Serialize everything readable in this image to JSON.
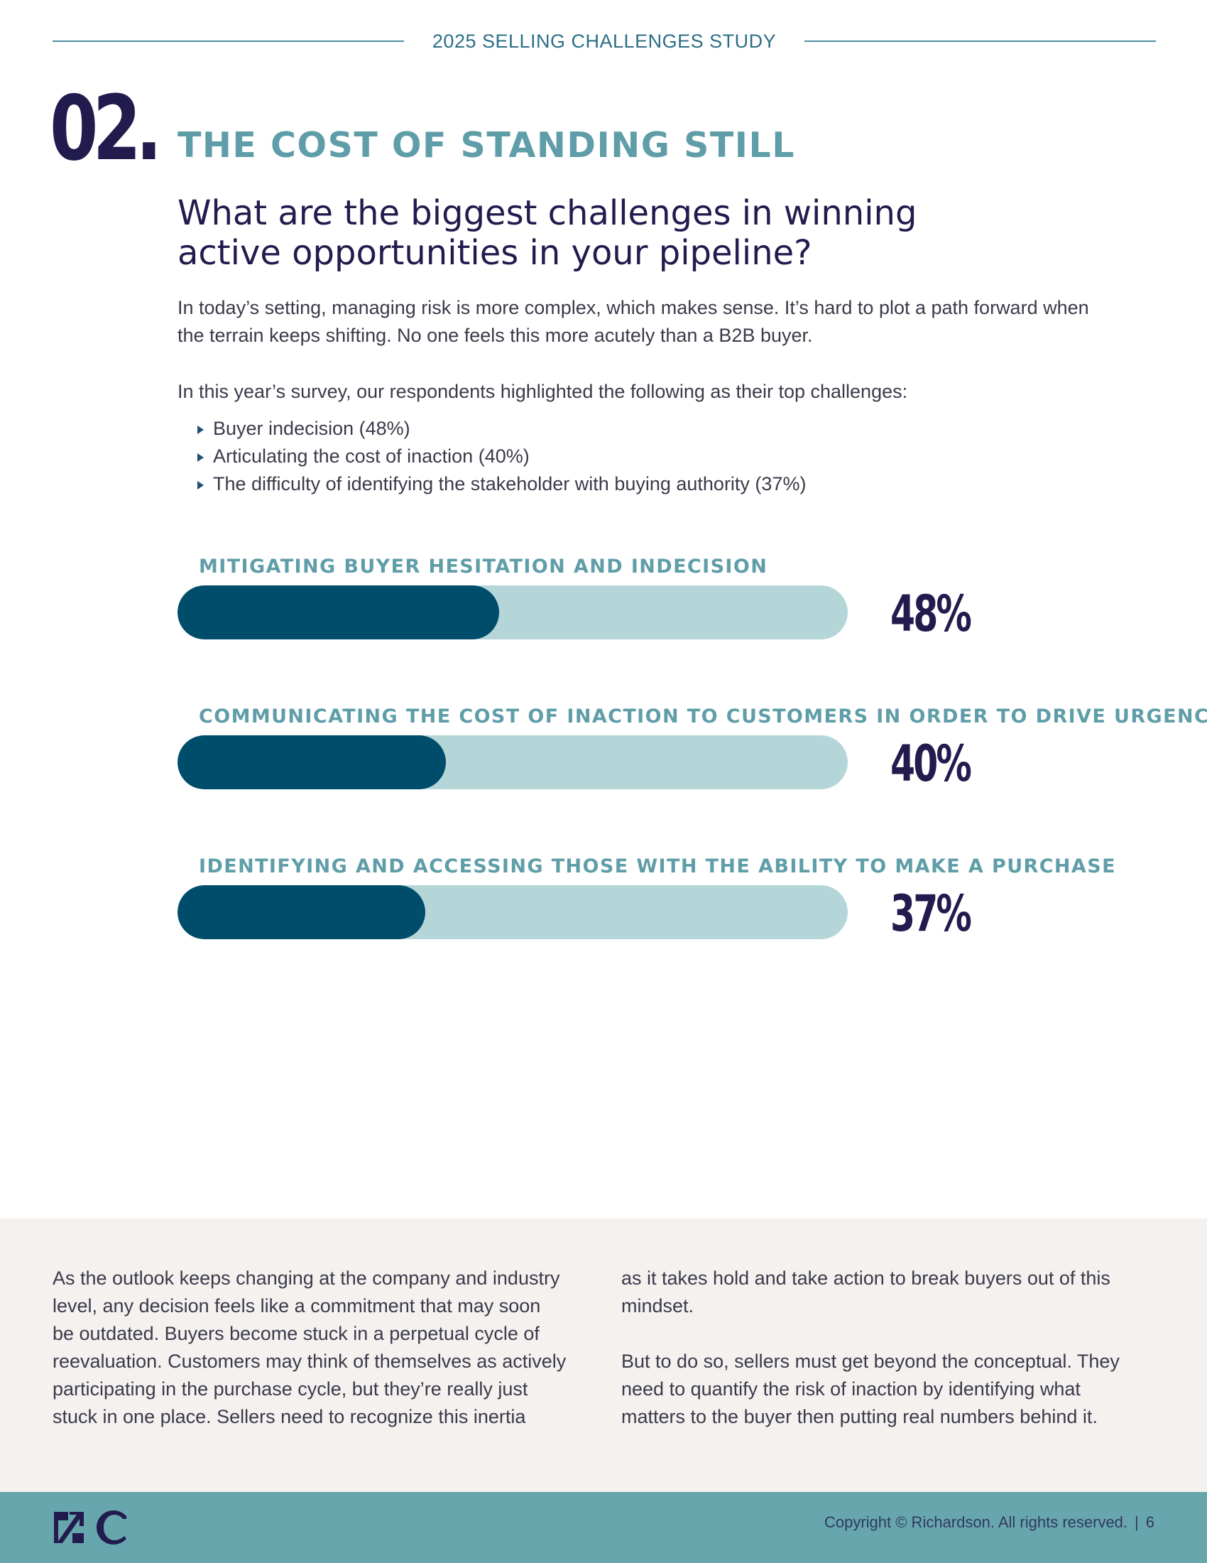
{
  "header": {
    "title": "2025 SELLING CHALLENGES STUDY"
  },
  "section": {
    "number": "02.",
    "title": "THE COST OF STANDING STILL",
    "question_lines": [
      "What are the biggest challenges in winning",
      "active opportunities in your pipeline?"
    ]
  },
  "intro": {
    "lines": [
      "In today’s setting, managing risk is more complex, which makes sense. It’s hard to plot a path forward when",
      "the terrain keeps shifting. No one feels this more acutely than a B2B buyer."
    ],
    "lead": "In this year’s survey, our respondents highlighted the following as their top challenges:",
    "bullets": [
      "Buyer indecision (48%)",
      "Articulating the cost of inaction (40%)",
      "The difficulty of identifying the stakeholder with buying authority (37%)"
    ]
  },
  "chart_data": {
    "type": "bar",
    "orientation": "horizontal",
    "categories": [
      "MITIGATING BUYER HESITATION AND INDECISION",
      "COMMUNICATING THE COST OF INACTION TO CUSTOMERS IN ORDER TO DRIVE URGENCY",
      "IDENTIFYING AND ACCESSING THOSE WITH THE ABILITY TO MAKE A PURCHASE"
    ],
    "values": [
      48,
      40,
      37
    ],
    "value_labels": [
      "48%",
      "40%",
      "37%"
    ],
    "xlim": [
      0,
      100
    ],
    "colors": {
      "fill": "#004d6b",
      "track": "#b5d6d8"
    }
  },
  "body": {
    "left_lines": [
      "As the outlook keeps changing at the company and industry",
      "level, any decision feels like a commitment that may soon",
      "be outdated. Buyers become stuck in a perpetual cycle of",
      "reevaluation. Customers may think of themselves as actively",
      "participating in the purchase cycle, but they’re really just",
      "stuck in one place. Sellers need to recognize this inertia"
    ],
    "right_lines_1": [
      "as it takes hold and take action to break buyers out of this",
      "mindset."
    ],
    "right_lines_2": [
      "But to do so, sellers must get beyond the conceptual. They",
      "need to quantify the risk of inaction by identifying what",
      "matters to the buyer then putting real numbers behind it."
    ]
  },
  "footer": {
    "logo_icon": "richardson-rc-logo-icon",
    "copyright": "Copyright © Richardson. All rights reserved.",
    "separator": "|",
    "page_number": "6"
  }
}
